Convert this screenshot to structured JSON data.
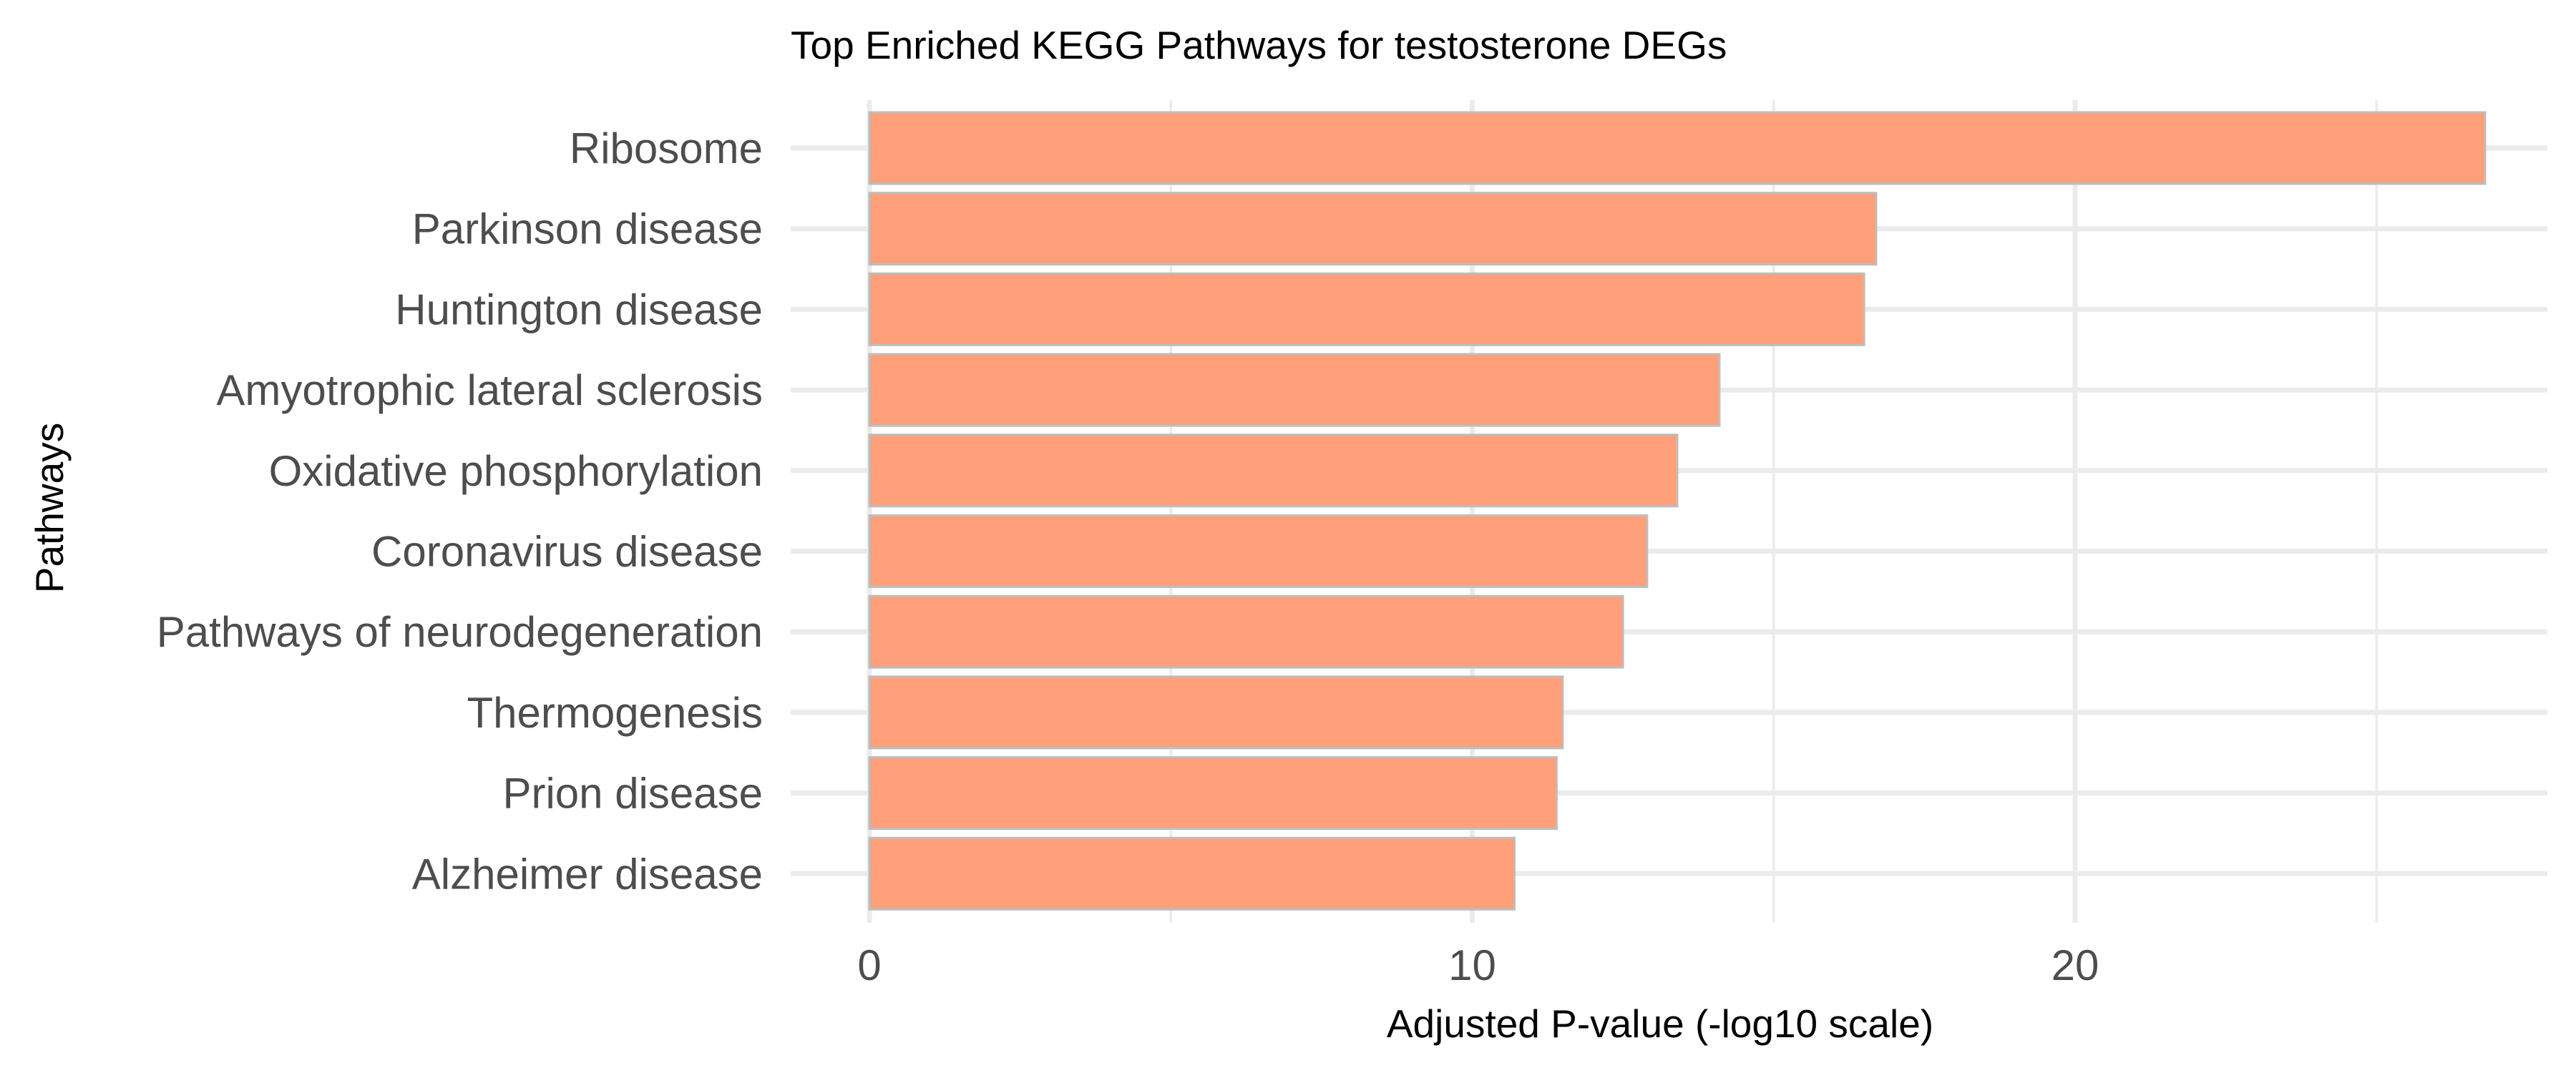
{
  "chart_data": {
    "type": "bar",
    "orientation": "horizontal",
    "title": "Top Enriched KEGG Pathways for testosterone DEGs",
    "xlabel": "Adjusted P-value (-log10 scale)",
    "ylabel": "Pathways",
    "xlim": [
      0,
      28.1
    ],
    "xticks": [
      0,
      10,
      20
    ],
    "x_minor_ticks": [
      5,
      15,
      25
    ],
    "grid": true,
    "categories": [
      "Ribosome",
      "Parkinson disease",
      "Huntington disease",
      "Amyotrophic lateral sclerosis",
      "Oxidative phosphorylation",
      "Coronavirus disease",
      "Pathways of neurodegeneration",
      "Thermogenesis",
      "Prion disease",
      "Alzheimer disease"
    ],
    "values": [
      26.8,
      16.7,
      16.5,
      14.1,
      13.4,
      12.9,
      12.5,
      11.5,
      11.4,
      10.7
    ],
    "colors": {
      "bar_fill": "#ffa07a",
      "bar_outline": "#bdbdbd",
      "grid": "#ebebeb",
      "tick_text": "#4d4d4d"
    }
  }
}
